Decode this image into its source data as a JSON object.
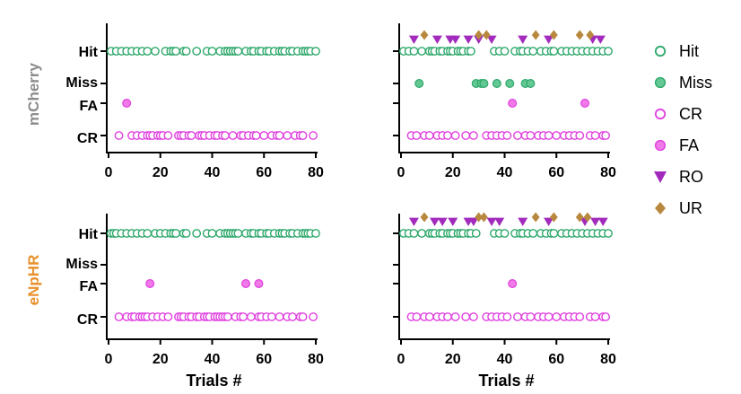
{
  "chart_data": [
    {
      "type": "scatter",
      "row": "mCherry",
      "col": "left",
      "xlim": [
        0,
        80
      ],
      "xticks": [
        0,
        20,
        40,
        60,
        80
      ],
      "xlabel": "",
      "yticks": [
        "Hit",
        "Miss",
        "FA",
        "CR"
      ],
      "series": [
        {
          "name": "Hit",
          "y": "Hit",
          "x": [
            1,
            3,
            5,
            7,
            9,
            11,
            13,
            15,
            18,
            22,
            24,
            25,
            26,
            29,
            30,
            34,
            38,
            40,
            43,
            45,
            46,
            47,
            48,
            49,
            50,
            53,
            55,
            56,
            58,
            59,
            61,
            62,
            64,
            66,
            67,
            68,
            70,
            71,
            73,
            75,
            76,
            77,
            78,
            80
          ]
        },
        {
          "name": "FA",
          "y": "FA",
          "x": [
            7
          ]
        },
        {
          "name": "CR",
          "y": "CR",
          "x": [
            4,
            9,
            11,
            13,
            15,
            16,
            17,
            19,
            20,
            21,
            23,
            27,
            28,
            29,
            31,
            32,
            35,
            36,
            37,
            39,
            41,
            42,
            44,
            45,
            48,
            51,
            52,
            54,
            56,
            57,
            60,
            63,
            65,
            66,
            69,
            72,
            74,
            75,
            79
          ]
        }
      ]
    },
    {
      "type": "scatter",
      "row": "mCherry",
      "col": "right",
      "xlim": [
        0,
        80
      ],
      "xticks": [
        0,
        20,
        40,
        60,
        80
      ],
      "xlabel": "",
      "yticks": [
        "Hit",
        "Miss",
        "FA",
        "CR"
      ],
      "series": [
        {
          "name": "Hit",
          "y": "Hit",
          "x": [
            1,
            3,
            5,
            8,
            11,
            12,
            13,
            15,
            16,
            18,
            19,
            20,
            22,
            23,
            24,
            26,
            27,
            36,
            38,
            40,
            44,
            46,
            47,
            49,
            51,
            54,
            56,
            58,
            59,
            62,
            64,
            66,
            68,
            70,
            72,
            74,
            76,
            78,
            80
          ]
        },
        {
          "name": "Miss",
          "y": "Miss",
          "x": [
            7,
            29,
            31,
            32,
            37,
            42,
            48,
            50
          ]
        },
        {
          "name": "FA",
          "y": "FA",
          "x": [
            43,
            71
          ]
        },
        {
          "name": "CR",
          "y": "CR",
          "x": [
            4,
            6,
            9,
            11,
            14,
            16,
            18,
            21,
            25,
            28,
            33,
            35,
            37,
            39,
            41,
            45,
            48,
            50,
            53,
            55,
            57,
            60,
            63,
            65,
            67,
            69,
            73,
            75,
            78,
            79
          ]
        },
        {
          "name": "RO",
          "y": "Hit",
          "x": [
            5,
            14,
            19,
            21,
            26,
            30,
            35,
            47,
            57,
            74,
            77
          ]
        },
        {
          "name": "UR",
          "y": "Hit",
          "x": [
            9,
            30,
            33,
            52,
            59,
            69,
            73
          ]
        }
      ]
    },
    {
      "type": "scatter",
      "row": "eNpHR",
      "col": "left",
      "xlim": [
        0,
        80
      ],
      "xticks": [
        0,
        20,
        40,
        60,
        80
      ],
      "xlabel": "Trials #",
      "yticks": [
        "Hit",
        "Miss",
        "FA",
        "CR"
      ],
      "series": [
        {
          "name": "Hit",
          "y": "Hit",
          "x": [
            1,
            2,
            3,
            5,
            7,
            9,
            11,
            13,
            15,
            18,
            20,
            22,
            24,
            25,
            26,
            29,
            30,
            34,
            38,
            40,
            43,
            45,
            46,
            47,
            48,
            49,
            50,
            53,
            55,
            56,
            58,
            59,
            61,
            62,
            64,
            66,
            67,
            68,
            70,
            71,
            73,
            75,
            76,
            77,
            78,
            80
          ]
        },
        {
          "name": "FA",
          "y": "FA",
          "x": [
            16,
            53,
            58
          ]
        },
        {
          "name": "CR",
          "y": "CR",
          "x": [
            4,
            7,
            9,
            10,
            12,
            13,
            14,
            15,
            17,
            19,
            21,
            23,
            27,
            28,
            29,
            31,
            32,
            34,
            35,
            37,
            38,
            39,
            41,
            42,
            43,
            44,
            45,
            46,
            49,
            51,
            52,
            55,
            58,
            59,
            61,
            63,
            66,
            69,
            71,
            74,
            75,
            79
          ]
        }
      ]
    },
    {
      "type": "scatter",
      "row": "eNpHR",
      "col": "right",
      "xlim": [
        0,
        80
      ],
      "xticks": [
        0,
        20,
        40,
        60,
        80
      ],
      "xlabel": "Trials #",
      "yticks": [
        "Hit",
        "Miss",
        "FA",
        "CR"
      ],
      "series": [
        {
          "name": "Hit",
          "y": "Hit",
          "x": [
            1,
            3,
            5,
            8,
            11,
            12,
            13,
            15,
            16,
            18,
            19,
            20,
            22,
            23,
            24,
            26,
            27,
            29,
            36,
            38,
            40,
            44,
            46,
            47,
            49,
            51,
            54,
            56,
            58,
            59,
            62,
            64,
            66,
            68,
            70,
            72,
            74,
            76,
            78,
            80
          ]
        },
        {
          "name": "FA",
          "y": "FA",
          "x": [
            43
          ]
        },
        {
          "name": "CR",
          "y": "CR",
          "x": [
            4,
            6,
            9,
            11,
            14,
            16,
            18,
            21,
            25,
            28,
            33,
            35,
            37,
            39,
            41,
            45,
            48,
            50,
            53,
            55,
            57,
            60,
            63,
            65,
            67,
            69,
            73,
            75,
            78,
            79
          ]
        },
        {
          "name": "RO",
          "y": "Hit",
          "x": [
            5,
            13,
            16,
            20,
            26,
            28,
            35,
            38,
            47,
            57,
            71,
            75,
            78
          ]
        },
        {
          "name": "UR",
          "y": "Hit",
          "x": [
            9,
            30,
            32,
            52,
            59,
            69,
            72
          ]
        }
      ]
    }
  ],
  "row_labels": [
    {
      "text": "mCherry",
      "color": "#8c8c8c"
    },
    {
      "text": "eNpHR",
      "color": "#e8902a"
    }
  ],
  "legend": [
    {
      "label": "Hit",
      "marker": "circle-open",
      "color": "#2ea86b"
    },
    {
      "label": "Miss",
      "marker": "circle-filled",
      "color": "#2ea86b"
    },
    {
      "label": "CR",
      "marker": "circle-open",
      "color": "#e040e0"
    },
    {
      "label": "FA",
      "marker": "circle-filled",
      "color": "#e040e0"
    },
    {
      "label": "RO",
      "marker": "triangle-down",
      "color": "#a22bbd"
    },
    {
      "label": "UR",
      "marker": "diamond",
      "color": "#b8883e"
    }
  ],
  "colors": {
    "Hit": "#2ea86b",
    "Hit_fill": "#ffffff",
    "Miss": "#2ea86b",
    "Miss_fill": "#63c893",
    "CR": "#e040e0",
    "CR_fill": "#ffffff",
    "FA": "#e040e0",
    "FA_fill": "#f07ae8",
    "RO": "#a22bbd",
    "UR": "#b8883e"
  }
}
